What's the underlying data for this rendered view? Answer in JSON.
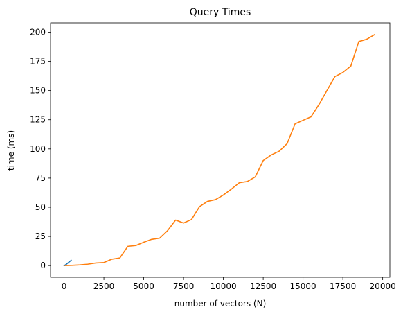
{
  "chart_data": {
    "type": "line",
    "title": "Query Times",
    "xlabel": "number of vectors (N)",
    "ylabel": "time (ms)",
    "xlim": [
      -850,
      20450
    ],
    "ylim": [
      -10,
      208
    ],
    "xticks": [
      0,
      2500,
      5000,
      7500,
      10000,
      12500,
      15000,
      17500,
      20000
    ],
    "yticks": [
      0,
      25,
      50,
      75,
      100,
      125,
      150,
      175,
      200
    ],
    "grid": false,
    "legend": "none",
    "series": [
      {
        "color": "#1f77b4",
        "x": [
          0,
          50,
          100,
          150,
          200,
          250,
          300,
          350,
          400,
          450
        ],
        "y": [
          0.0,
          0.3,
          0.7,
          1.2,
          1.8,
          2.3,
          2.9,
          3.4,
          4.0,
          4.6
        ]
      },
      {
        "color": "#ff7f0e",
        "x": [
          0,
          500,
          1000,
          1500,
          2000,
          2500,
          3000,
          3500,
          4000,
          4500,
          5000,
          5500,
          6000,
          6500,
          7000,
          7500,
          8000,
          8500,
          9000,
          9500,
          10000,
          10500,
          11000,
          11500,
          12000,
          12500,
          13000,
          13500,
          14000,
          14500,
          15000,
          15500,
          16000,
          16500,
          17000,
          17500,
          18000,
          18500,
          19000,
          19500
        ],
        "y": [
          0.0,
          0.2,
          0.6,
          1.2,
          2.2,
          2.6,
          5.5,
          6.5,
          16.5,
          17.2,
          20.0,
          22.5,
          23.5,
          30.0,
          39.0,
          36.5,
          39.5,
          50.5,
          55.0,
          56.5,
          60.5,
          65.5,
          71.0,
          72.0,
          76.0,
          90.0,
          94.8,
          98.0,
          104.5,
          121.5,
          124.5,
          127.5,
          138.0,
          150.0,
          162.0,
          165.5,
          171.0,
          192.0,
          194.0,
          198.0
        ]
      }
    ]
  }
}
